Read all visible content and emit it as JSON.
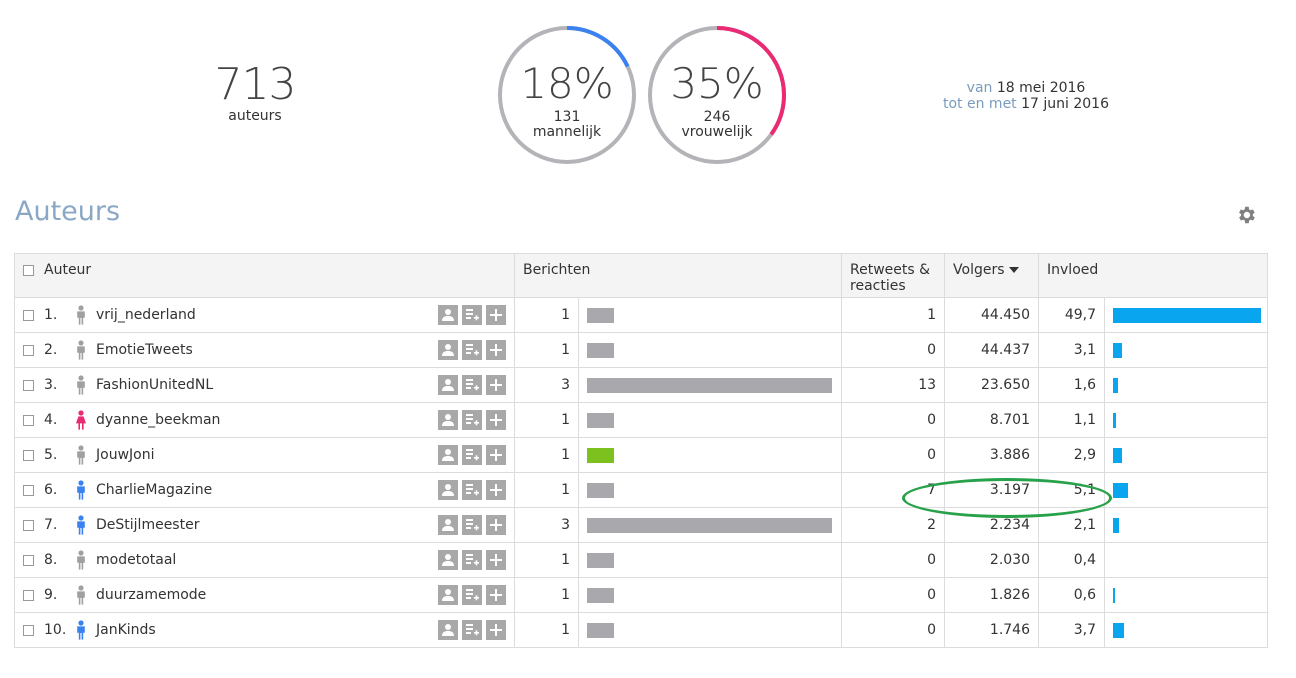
{
  "summary": {
    "total": "713",
    "total_label": "auteurs",
    "male": {
      "pct_text": "18%",
      "count": "131",
      "label": "mannelijk",
      "fraction": 0.18,
      "color": "#3b82f0"
    },
    "female": {
      "pct_text": "35%",
      "count": "246",
      "label": "vrouwelijk",
      "fraction": 0.35,
      "color": "#ea2a73"
    }
  },
  "period": {
    "from_label": "van",
    "from_date": "18 mei 2016",
    "to_label": "tot en met",
    "to_date": "17 juni 2016"
  },
  "section_title": "Auteurs",
  "table": {
    "headers": {
      "author": "Auteur",
      "messages": "Berichten",
      "retweets": "Retweets & reacties",
      "followers": "Volgers",
      "influence": "Invloed"
    },
    "rows": [
      {
        "rank": "1.",
        "name": "vrij_nederland",
        "gender": "unknown",
        "messages": "1",
        "msg_value": 1,
        "retweets": "1",
        "followers": "44.450",
        "influence": "49,7",
        "inf_value": 49.7,
        "highlight": false
      },
      {
        "rank": "2.",
        "name": "EmotieTweets",
        "gender": "unknown",
        "messages": "1",
        "msg_value": 1,
        "retweets": "0",
        "followers": "44.437",
        "influence": "3,1",
        "inf_value": 3.1,
        "highlight": false
      },
      {
        "rank": "3.",
        "name": "FashionUnitedNL",
        "gender": "unknown",
        "messages": "3",
        "msg_value": 3,
        "retweets": "13",
        "followers": "23.650",
        "influence": "1,6",
        "inf_value": 1.6,
        "highlight": false
      },
      {
        "rank": "4.",
        "name": "dyanne_beekman",
        "gender": "female",
        "messages": "1",
        "msg_value": 1,
        "retweets": "0",
        "followers": "8.701",
        "influence": "1,1",
        "inf_value": 1.1,
        "highlight": false
      },
      {
        "rank": "5.",
        "name": "JouwJoni",
        "gender": "unknown",
        "messages": "1",
        "msg_value": 1,
        "retweets": "0",
        "followers": "3.886",
        "influence": "2,9",
        "inf_value": 2.9,
        "highlight": true
      },
      {
        "rank": "6.",
        "name": "CharlieMagazine",
        "gender": "male",
        "messages": "1",
        "msg_value": 1,
        "retweets": "7",
        "followers": "3.197",
        "influence": "5,1",
        "inf_value": 5.1,
        "highlight": false
      },
      {
        "rank": "7.",
        "name": "DeStijlmeester",
        "gender": "male",
        "messages": "3",
        "msg_value": 3,
        "retweets": "2",
        "followers": "2.234",
        "influence": "2,1",
        "inf_value": 2.1,
        "highlight": false
      },
      {
        "rank": "8.",
        "name": "modetotaal",
        "gender": "unknown",
        "messages": "1",
        "msg_value": 1,
        "retweets": "0",
        "followers": "2.030",
        "influence": "0,4",
        "inf_value": 0.4,
        "highlight": false
      },
      {
        "rank": "9.",
        "name": "duurzamemode",
        "gender": "unknown",
        "messages": "1",
        "msg_value": 1,
        "retweets": "0",
        "followers": "1.826",
        "influence": "0,6",
        "inf_value": 0.6,
        "highlight": false
      },
      {
        "rank": "10.",
        "name": "JanKinds",
        "gender": "male",
        "messages": "1",
        "msg_value": 1,
        "retweets": "0",
        "followers": "1.746",
        "influence": "3,7",
        "inf_value": 3.7,
        "highlight": false
      }
    ]
  },
  "colors": {
    "male": "#3b82f0",
    "female": "#ea2a73",
    "unknown": "#a0a0a0",
    "influence_bar": "#0aa5ef",
    "message_bar": "#a9a9ad",
    "highlight_bar": "#7cc11e",
    "annotation": "#27a24a"
  },
  "icons": {
    "settings": "gear-icon",
    "profile": "user-profile-icon",
    "add_to_list": "add-to-list-icon",
    "add": "plus-icon",
    "sort": "sort-desc-icon"
  }
}
